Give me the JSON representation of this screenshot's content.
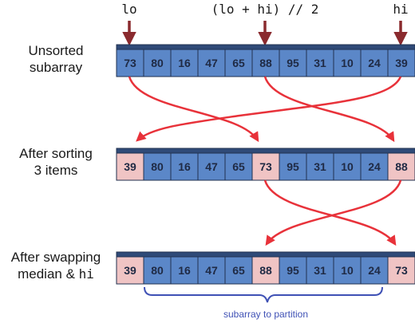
{
  "colors": {
    "blue_fill": "#5b87c8",
    "pink_fill": "#f0c4c4",
    "cell_stroke": "#22324f",
    "header_bar": "#2f4a78",
    "arrow_red": "#e8323a",
    "marker_dark_red": "#8a2a2e",
    "brace_blue": "#3f51b5"
  },
  "pointers": {
    "lo": "lo",
    "mid": "(lo + hi) // 2",
    "hi": "hi"
  },
  "rows": [
    {
      "label_line1": "Unsorted",
      "label_line2": "subarray",
      "cells": [
        {
          "v": "73",
          "h": false
        },
        {
          "v": "80",
          "h": false
        },
        {
          "v": "16",
          "h": false
        },
        {
          "v": "47",
          "h": false
        },
        {
          "v": "65",
          "h": false
        },
        {
          "v": "88",
          "h": false
        },
        {
          "v": "95",
          "h": false
        },
        {
          "v": "31",
          "h": false
        },
        {
          "v": "10",
          "h": false
        },
        {
          "v": "24",
          "h": false
        },
        {
          "v": "39",
          "h": false
        }
      ]
    },
    {
      "label_line1": "After sorting",
      "label_line2": "3 items",
      "cells": [
        {
          "v": "39",
          "h": true
        },
        {
          "v": "80",
          "h": false
        },
        {
          "v": "16",
          "h": false
        },
        {
          "v": "47",
          "h": false
        },
        {
          "v": "65",
          "h": false
        },
        {
          "v": "73",
          "h": true
        },
        {
          "v": "95",
          "h": false
        },
        {
          "v": "31",
          "h": false
        },
        {
          "v": "10",
          "h": false
        },
        {
          "v": "24",
          "h": false
        },
        {
          "v": "88",
          "h": true
        }
      ]
    },
    {
      "label_line1": "After swapping",
      "label_line2_prefix": "median & ",
      "label_line2_code": "hi",
      "cells": [
        {
          "v": "39",
          "h": true
        },
        {
          "v": "80",
          "h": false
        },
        {
          "v": "16",
          "h": false
        },
        {
          "v": "47",
          "h": false
        },
        {
          "v": "65",
          "h": false
        },
        {
          "v": "88",
          "h": true
        },
        {
          "v": "95",
          "h": false
        },
        {
          "v": "31",
          "h": false
        },
        {
          "v": "10",
          "h": false
        },
        {
          "v": "24",
          "h": false
        },
        {
          "v": "73",
          "h": true
        }
      ]
    }
  ],
  "brace_label": "subarray to partition"
}
